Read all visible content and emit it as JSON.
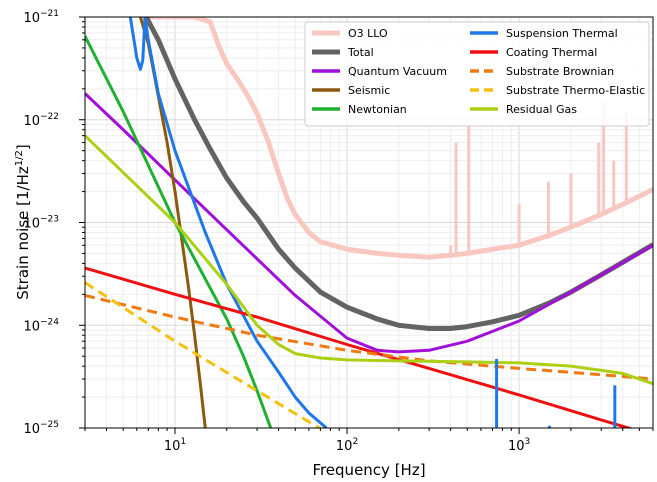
{
  "chart_data": {
    "type": "line",
    "title": "",
    "xlabel": "Frequency [Hz]",
    "ylabel": "Strain noise [1/Hz",
    "ylabel_sup": "1/2",
    "ylabel_end": "]",
    "xscale": "log",
    "yscale": "log",
    "xlim": [
      3,
      6000
    ],
    "ylim": [
      1e-25,
      1e-21
    ],
    "grid": true,
    "legend_position": "top-right",
    "x_ticks": [
      {
        "value": 10,
        "base": "10",
        "exp": "1"
      },
      {
        "value": 100,
        "base": "10",
        "exp": "2"
      },
      {
        "value": 1000,
        "base": "10",
        "exp": "3"
      }
    ],
    "y_ticks": [
      {
        "value": 1e-25,
        "base": "10",
        "exp": "−25"
      },
      {
        "value": 1e-24,
        "base": "10",
        "exp": "−24"
      },
      {
        "value": 1e-23,
        "base": "10",
        "exp": "−23"
      },
      {
        "value": 1e-22,
        "base": "10",
        "exp": "−22"
      },
      {
        "value": 1e-21,
        "base": "10",
        "exp": "−21"
      }
    ],
    "series": [
      {
        "name": "O3 LLO",
        "color": "#f8c8c0",
        "width": 5,
        "dash": "",
        "x": [
          6.5,
          8,
          10,
          13,
          16,
          18,
          20,
          23,
          26,
          30,
          35,
          40,
          45,
          50,
          60,
          70,
          100,
          150,
          200,
          300,
          400,
          500,
          700,
          1000,
          1500,
          2000,
          3000,
          4000,
          5000,
          6000
        ],
        "y": [
          1e-21,
          1e-21,
          1e-21,
          1e-21,
          9e-22,
          5.2e-22,
          3.5e-22,
          2.5e-22,
          1.8e-22,
          1.15e-22,
          6e-23,
          3e-23,
          1.7e-23,
          1.2e-23,
          8e-24,
          6.5e-24,
          5.5e-24,
          5e-24,
          4.8e-24,
          4.6e-24,
          4.8e-24,
          5e-24,
          5.5e-24,
          6e-24,
          7.5e-24,
          9e-24,
          1.2e-23,
          1.5e-23,
          1.8e-23,
          2.1e-23
        ]
      },
      {
        "name": "Total",
        "color": "#636363",
        "width": 5,
        "dash": "",
        "x": [
          6.8,
          8,
          10,
          13,
          16,
          20,
          25,
          30,
          40,
          50,
          70,
          100,
          150,
          200,
          300,
          400,
          500,
          700,
          1000,
          1500,
          2000,
          3000,
          4000,
          6000
        ],
        "y": [
          1e-21,
          6e-22,
          2.5e-22,
          1e-22,
          5.2e-23,
          2.7e-23,
          1.6e-23,
          1.1e-23,
          5.5e-24,
          3.6e-24,
          2.1e-24,
          1.5e-24,
          1.15e-24,
          1e-24,
          9.3e-25,
          9.3e-25,
          9.7e-25,
          1.08e-24,
          1.25e-24,
          1.65e-24,
          2.1e-24,
          3.1e-24,
          4.1e-24,
          6.1e-24
        ]
      },
      {
        "name": "Quantum Vacuum",
        "color": "#a010d8",
        "width": 3,
        "dash": "",
        "x": [
          3,
          5,
          10,
          20,
          50,
          100,
          150,
          200,
          300,
          500,
          1000,
          2000,
          6000
        ],
        "y": [
          1.8e-22,
          8e-23,
          2.6e-23,
          8.5e-24,
          1.95e-24,
          7.5e-25,
          5.7e-25,
          5.5e-25,
          5.7e-25,
          7e-25,
          1.1e-24,
          2.1e-24,
          6e-24
        ]
      },
      {
        "name": "Seismic",
        "color": "#8b5a10",
        "width": 3,
        "dash": "",
        "x": [
          6.3,
          7,
          8,
          9,
          10,
          11,
          12,
          13,
          14,
          15
        ],
        "y": [
          1e-21,
          5.5e-22,
          1.7e-22,
          6e-23,
          2e-23,
          6.5e-24,
          2.3e-24,
          8e-25,
          2.8e-25,
          1e-25
        ]
      },
      {
        "name": "Newtonian",
        "color": "#20b030",
        "width": 3,
        "dash": "",
        "x": [
          3,
          5,
          10,
          20,
          25,
          30,
          36
        ],
        "y": [
          6.5e-22,
          1.2e-22,
          1e-23,
          1.15e-24,
          5e-25,
          2.3e-25,
          1e-25
        ]
      },
      {
        "name": "Suspension Thermal",
        "color": "#1e78e8",
        "width": 3,
        "dash": "",
        "x": [
          5.5,
          6,
          6.3,
          6.5,
          6.7,
          7,
          8,
          10,
          15,
          20,
          30,
          40,
          50,
          60,
          76
        ],
        "y": [
          1e-21,
          4e-22,
          3.1e-22,
          3.8e-22,
          1e-21,
          6e-22,
          1.8e-22,
          5e-23,
          8e-24,
          2.5e-24,
          7e-25,
          3.5e-25,
          2e-25,
          1.4e-25,
          1e-25
        ]
      },
      {
        "name": "Coating Thermal",
        "color": "#ee1010",
        "width": 3,
        "dash": "",
        "x": [
          3,
          10,
          30,
          100,
          300,
          1000,
          3000,
          6000
        ],
        "y": [
          3.6e-24,
          2e-24,
          1.2e-24,
          6.5e-25,
          3.8e-25,
          2.1e-25,
          1.2e-25,
          8.5e-26
        ]
      },
      {
        "name": "Substrate Brownian",
        "color": "#f07a10",
        "width": 3,
        "dash": "10,6",
        "x": [
          3,
          10,
          30,
          100,
          300,
          1000,
          3000,
          6000
        ],
        "y": [
          1.95e-24,
          1.2e-24,
          8e-25,
          5.7e-25,
          4.5e-25,
          3.8e-25,
          3.3e-25,
          3e-25
        ]
      },
      {
        "name": "Substrate Thermo-Elastic",
        "color": "#f5c010",
        "width": 3,
        "dash": "10,6",
        "x": [
          3,
          10,
          30,
          60,
          100
        ],
        "y": [
          2.6e-24,
          7e-25,
          2.3e-25,
          1.15e-25,
          7e-26
        ]
      },
      {
        "name": "Residual Gas",
        "color": "#acd015",
        "width": 3,
        "dash": "",
        "x": [
          3,
          10,
          20,
          30,
          40,
          50,
          70,
          100,
          200,
          500,
          1000,
          2000,
          4000,
          6000
        ],
        "y": [
          7e-23,
          1e-23,
          2.5e-24,
          1e-24,
          6.5e-25,
          5.3e-25,
          4.8e-25,
          4.6e-25,
          4.5e-25,
          4.4e-25,
          4.3e-25,
          4e-25,
          3.4e-25,
          2.7e-25
        ]
      }
    ],
    "spikes": [
      {
        "series": "O3 LLO",
        "x": 400,
        "y_from": 4.6e-24,
        "y_to": 6e-24
      },
      {
        "series": "O3 LLO",
        "x": 430,
        "y_from": 4.8e-24,
        "y_to": 6e-23
      },
      {
        "series": "O3 LLO",
        "x": 510,
        "y_from": 5e-24,
        "y_to": 9e-23
      },
      {
        "series": "O3 LLO",
        "x": 1000,
        "y_from": 6e-24,
        "y_to": 1.5e-23
      },
      {
        "series": "O3 LLO",
        "x": 1480,
        "y_from": 7.5e-24,
        "y_to": 2.5e-23
      },
      {
        "series": "O3 LLO",
        "x": 2000,
        "y_from": 9e-24,
        "y_to": 3e-23
      },
      {
        "series": "O3 LLO",
        "x": 2900,
        "y_from": 1.2e-23,
        "y_to": 6e-23
      },
      {
        "series": "O3 LLO",
        "x": 3100,
        "y_from": 1.2e-23,
        "y_to": 1.5e-22
      },
      {
        "series": "O3 LLO",
        "x": 3550,
        "y_from": 1.4e-23,
        "y_to": 4e-23
      },
      {
        "series": "O3 LLO",
        "x": 4200,
        "y_from": 1.6e-23,
        "y_to": 1.2e-22
      },
      {
        "series": "Suspension Thermal",
        "x": 740,
        "y_from": 1e-25,
        "y_to": 4.7e-25
      },
      {
        "series": "Suspension Thermal",
        "x": 1500,
        "y_from": 1e-25,
        "y_to": 1.05e-25
      },
      {
        "series": "Suspension Thermal",
        "x": 3600,
        "y_from": 1e-25,
        "y_to": 2.6e-25
      }
    ]
  }
}
